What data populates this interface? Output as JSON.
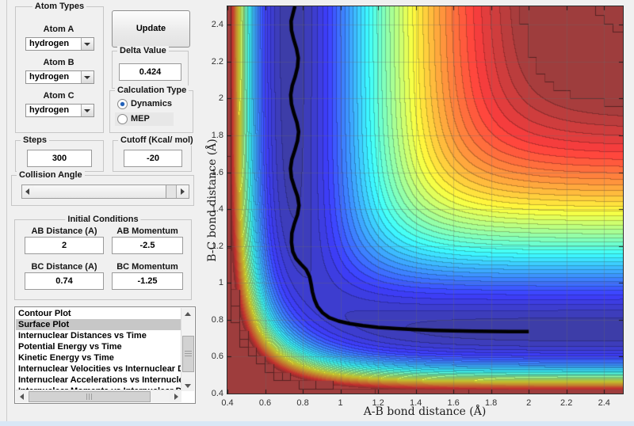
{
  "window": {
    "background": "#f0f0f0",
    "bottom_strip_color": "#d9e7f6"
  },
  "panel": {
    "atom_types": {
      "title": "Atom Types",
      "rows": [
        {
          "label": "Atom A",
          "value": "hydrogen"
        },
        {
          "label": "Atom B",
          "value": "hydrogen"
        },
        {
          "label": "Atom C",
          "value": "hydrogen"
        }
      ]
    },
    "update_button_label": "Update",
    "delta_value": {
      "title": "Delta Value",
      "value": "0.424"
    },
    "calculation_type": {
      "title": "Calculation Type",
      "options": [
        {
          "label": "Dynamics",
          "selected": true
        },
        {
          "label": "MEP",
          "selected": false
        }
      ]
    },
    "steps": {
      "title": "Steps",
      "value": "300"
    },
    "cutoff": {
      "title": "Cutoff (Kcal/ mol)",
      "value": "-20"
    },
    "collision_angle": {
      "title": "Collision Angle",
      "thumb_at_minimum": true
    },
    "initial_conditions": {
      "title": "Initial Conditions",
      "fields": [
        {
          "label": "AB Distance (A)",
          "value": "2"
        },
        {
          "label": "AB Momentum",
          "value": "-2.5"
        },
        {
          "label": "BC Distance (A)",
          "value": "0.74"
        },
        {
          "label": "BC Momentum",
          "value": "-1.25"
        }
      ]
    },
    "plot_list": {
      "selected_index": 1,
      "items": [
        "Contour Plot",
        "Surface Plot",
        "Internuclear Distances vs Time",
        "Potential Energy vs Time",
        "Kinetic Energy vs Time",
        "Internuclear Velocities vs Internuclear Distance",
        "Internuclear Accelerations vs Internuclear Distance",
        "Internuclear Momenta vs Internuclear Distance"
      ]
    }
  },
  "chart_data": {
    "type": "contour",
    "title": "",
    "xlabel": "A-B bond distance (Å)",
    "ylabel": "B-C bond distance (Å)",
    "x_range": [
      0.4,
      2.5
    ],
    "y_range": [
      0.4,
      2.5
    ],
    "x_tick_values": [
      0.4,
      0.6,
      0.8,
      1,
      1.2,
      1.4,
      1.6,
      1.8,
      2,
      2.2,
      2.4
    ],
    "x_tick_labels": [
      "0.4",
      "0.6",
      "0.8",
      "1",
      "1.2",
      "1.4",
      "1.6",
      "1.8",
      "2",
      "2.2",
      "2.4"
    ],
    "y_tick_values": [
      0.4,
      0.6,
      0.8,
      1,
      1.2,
      1.4,
      1.6,
      1.8,
      2,
      2.2,
      2.4
    ],
    "y_tick_labels": [
      "0.4",
      "0.6",
      "0.8",
      "1",
      "1.2",
      "1.4",
      "1.6",
      "1.8",
      "2",
      "2.2",
      "2.4"
    ],
    "grid": true,
    "colormap": "jet",
    "levels": 40,
    "caxis_kcal_mol": [
      -110,
      -20
    ],
    "surface_model": "LEPS collinear A+BC potential energy surface (kcal/mol), values above cutoff -20 shown as flat dark red",
    "leps_params": {
      "D": 109.5,
      "beta": 1.942,
      "r0": 0.7413,
      "sato": 0.1875
    },
    "trajectory": {
      "color": "#000000",
      "width": 4.5,
      "points": [
        [
          2.0,
          0.736
        ],
        [
          1.9,
          0.736
        ],
        [
          1.8,
          0.737
        ],
        [
          1.7,
          0.738
        ],
        [
          1.6,
          0.74
        ],
        [
          1.5,
          0.743
        ],
        [
          1.4,
          0.747
        ],
        [
          1.3,
          0.752
        ],
        [
          1.2,
          0.759
        ],
        [
          1.12,
          0.768
        ],
        [
          1.05,
          0.779
        ],
        [
          0.99,
          0.793
        ],
        [
          0.94,
          0.812
        ],
        [
          0.905,
          0.838
        ],
        [
          0.878,
          0.872
        ],
        [
          0.862,
          0.91
        ],
        [
          0.851,
          0.952
        ],
        [
          0.844,
          0.995
        ],
        [
          0.836,
          1.035
        ],
        [
          0.818,
          1.072
        ],
        [
          0.79,
          1.102
        ],
        [
          0.764,
          1.132
        ],
        [
          0.747,
          1.17
        ],
        [
          0.74,
          1.22
        ],
        [
          0.742,
          1.27
        ],
        [
          0.755,
          1.32
        ],
        [
          0.772,
          1.37
        ],
        [
          0.78,
          1.42
        ],
        [
          0.772,
          1.47
        ],
        [
          0.755,
          1.52
        ],
        [
          0.74,
          1.57
        ],
        [
          0.735,
          1.62
        ],
        [
          0.742,
          1.67
        ],
        [
          0.758,
          1.72
        ],
        [
          0.772,
          1.77
        ],
        [
          0.778,
          1.82
        ],
        [
          0.769,
          1.87
        ],
        [
          0.753,
          1.92
        ],
        [
          0.74,
          1.97
        ],
        [
          0.736,
          2.02
        ],
        [
          0.744,
          2.07
        ],
        [
          0.76,
          2.12
        ],
        [
          0.772,
          2.17
        ],
        [
          0.776,
          2.22
        ],
        [
          0.767,
          2.27
        ],
        [
          0.752,
          2.32
        ],
        [
          0.74,
          2.37
        ],
        [
          0.738,
          2.42
        ],
        [
          0.748,
          2.46
        ],
        [
          0.758,
          2.5
        ]
      ]
    }
  }
}
